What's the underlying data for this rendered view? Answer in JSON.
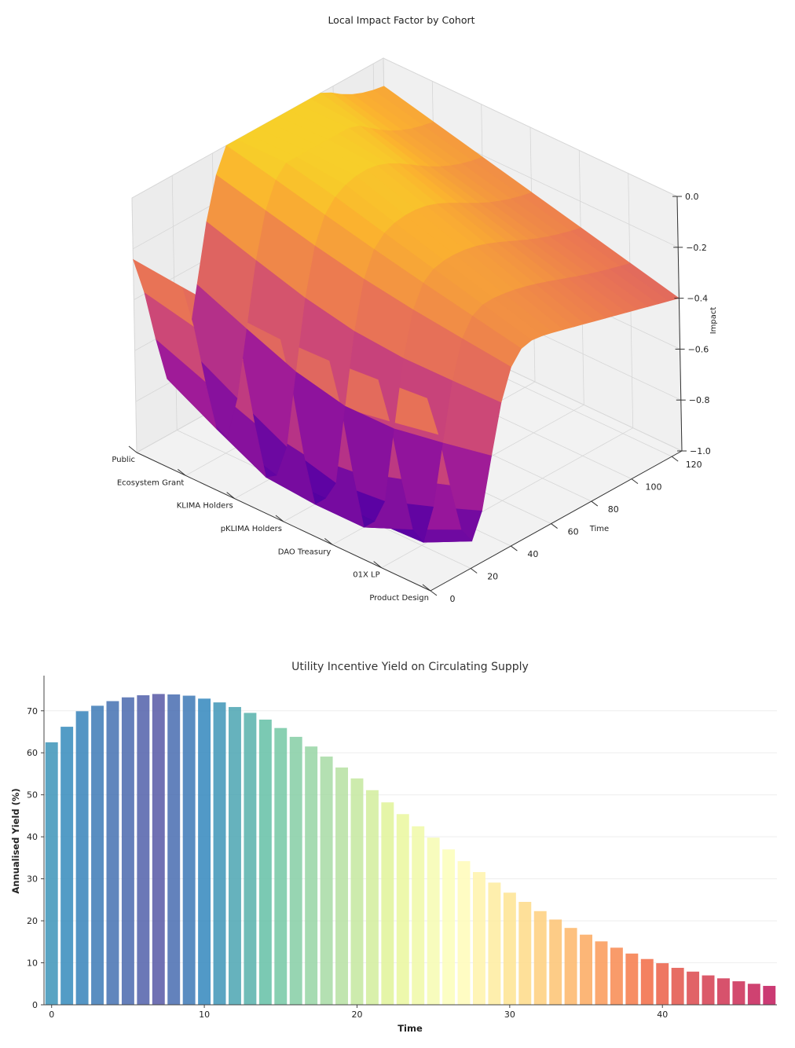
{
  "chart_data": [
    {
      "type": "surface",
      "title": "Local Impact Factor by Cohort",
      "xlabel": "",
      "ylabel": "Time",
      "zlabel": "Impact",
      "categories": [
        "Public",
        "Ecosystem Grant",
        "KLIMA Holders",
        "pKLIMA Holders",
        "DAO Treasury",
        "01X  LP",
        "Product Design"
      ],
      "y_ticks": [
        0,
        20,
        40,
        60,
        80,
        100,
        120
      ],
      "z_ticks": [
        "0.0",
        "−0.2",
        "−0.4",
        "−0.6",
        "−0.8",
        "−1.0"
      ],
      "ylim": [
        0,
        125
      ],
      "zlim": [
        -1.0,
        0.0
      ],
      "colormap": "plasma",
      "grid": true
    },
    {
      "type": "bar",
      "title": "Utility Incentive Yield on Circulating Supply",
      "xlabel": "Time",
      "ylabel": "Annualised Yield (%)",
      "x_ticks": [
        0,
        10,
        20,
        30,
        40
      ],
      "y_ticks": [
        0,
        10,
        20,
        30,
        40,
        50,
        60,
        70
      ],
      "ylim": [
        0,
        78
      ],
      "xlim": [
        -0.5,
        47.5
      ],
      "x": [
        0,
        1,
        2,
        3,
        4,
        5,
        6,
        7,
        8,
        9,
        10,
        11,
        12,
        13,
        14,
        15,
        16,
        17,
        18,
        19,
        20,
        21,
        22,
        23,
        24,
        25,
        26,
        27,
        28,
        29,
        30,
        31,
        32,
        33,
        34,
        35,
        36,
        37,
        38,
        39,
        40,
        41,
        42,
        43,
        44,
        45,
        46,
        47
      ],
      "values": [
        62.5,
        66.2,
        69.9,
        71.2,
        72.3,
        73.2,
        73.7,
        74.0,
        73.9,
        73.6,
        72.9,
        72.0,
        70.9,
        69.5,
        67.9,
        65.9,
        63.8,
        61.5,
        59.1,
        56.5,
        53.9,
        51.1,
        48.2,
        45.4,
        42.5,
        39.8,
        37.0,
        34.2,
        31.6,
        29.1,
        26.7,
        24.5,
        22.3,
        20.3,
        18.3,
        16.7,
        15.1,
        13.6,
        12.2,
        10.9,
        9.9,
        8.8,
        7.9,
        7.0,
        6.3,
        5.6,
        5.0,
        4.5
      ],
      "colormap": "spectral",
      "grid": true
    }
  ]
}
